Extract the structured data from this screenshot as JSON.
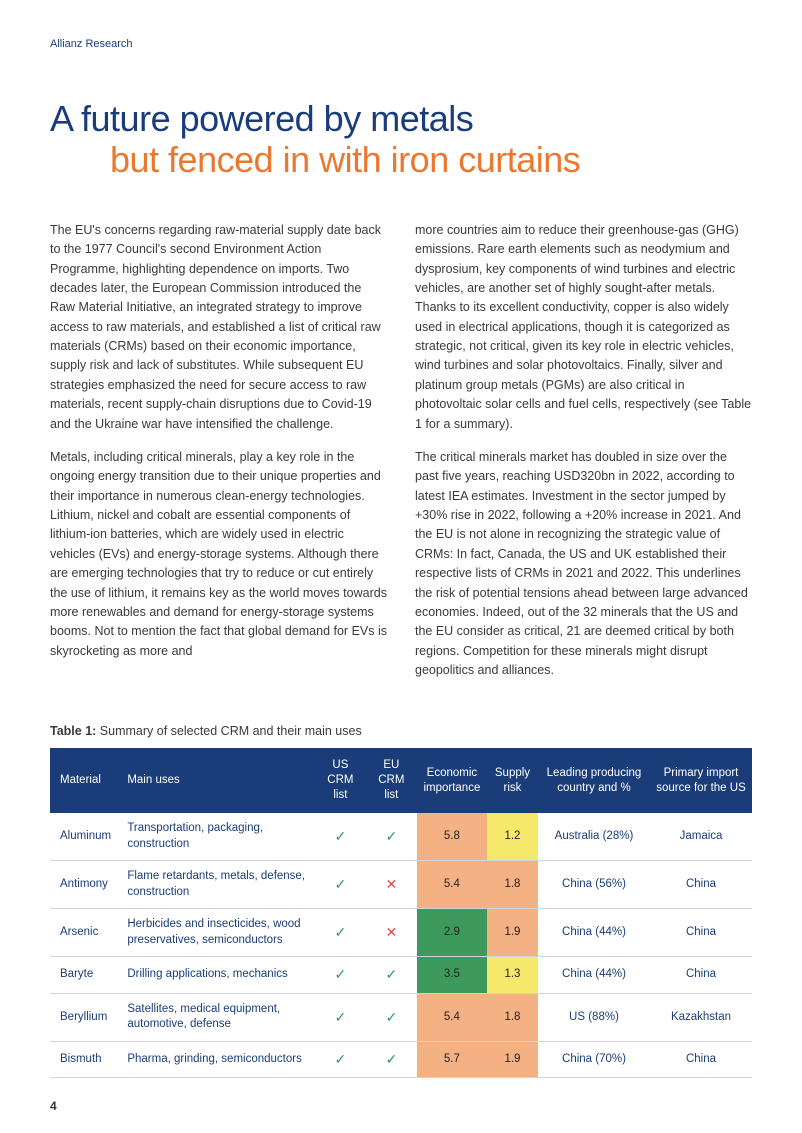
{
  "header": {
    "label": "Allianz Research"
  },
  "title": {
    "line1": "A future powered by metals",
    "line2": "but fenced in with iron curtains"
  },
  "body": {
    "left": [
      "The EU's concerns regarding raw-material supply date back to the 1977 Council's second Environment Action Programme, highlighting dependence on imports. Two decades later, the European Commission introduced the Raw Material Initiative, an integrated strategy to improve access to raw materials, and established a list of critical raw materials (CRMs) based on their economic importance, supply risk and lack of substitutes. While subsequent EU strategies emphasized the need for secure access to raw materials, recent supply-chain disruptions due to Covid-19 and the Ukraine war have intensified the challenge.",
      "Metals, including critical minerals, play a key role in the ongoing energy transition due to their unique properties and their importance in numerous clean-energy technologies. Lithium, nickel and cobalt are essential components of lithium-ion batteries, which are widely used in electric vehicles (EVs) and energy-storage systems. Although there are emerging technologies that try to reduce or cut entirely the use of lithium, it remains key as the world moves towards more renewables and demand for energy-storage systems booms. Not to mention the fact that global demand for EVs is skyrocketing as more and"
    ],
    "right": [
      "more countries aim to reduce their greenhouse-gas (GHG) emissions. Rare earth elements such as neodymium and dysprosium, key components of wind turbines and electric vehicles, are another set of highly sought-after metals. Thanks to its excellent conductivity, copper is also widely used in electrical applications, though it is categorized as strategic, not critical, given its key role in electric vehicles, wind turbines and solar photovoltaics. Finally, silver and platinum group metals (PGMs) are also critical in photovoltaic solar cells and fuel cells, respectively (see Table 1 for a summary).",
      "The critical minerals market has doubled in size over the past five years, reaching USD320bn in 2022, according to latest IEA estimates. Investment in the sector jumped by +30% rise in 2022, following a +20% increase in 2021. And the EU is not alone in recognizing the strategic value of CRMs: In fact, Canada, the US and UK established their respective lists of CRMs in 2021 and 2022. This underlines the risk of potential tensions ahead between large advanced economies. Indeed, out of the 32 minerals that the US and the EU consider as critical, 21 are deemed critical by both regions. Competition for these minerals might disrupt geopolitics and alliances."
    ]
  },
  "table": {
    "caption_bold": "Table 1:",
    "caption_rest": " Summary of selected CRM and their main uses",
    "headers": [
      "Material",
      "Main uses",
      "US CRM list",
      "EU CRM list",
      "Economic importance",
      "Supply risk",
      "Leading producing country and %",
      "Primary import source for the US"
    ],
    "col_widths": [
      "70px",
      "190px",
      "50px",
      "50px",
      "68px",
      "50px",
      "110px",
      "100px"
    ],
    "rows": [
      {
        "material": "Aluminum",
        "uses": "Transportation, packaging, construction",
        "us": true,
        "eu": true,
        "econ": "5.8",
        "econ_bg": "#f4b183",
        "risk": "1.2",
        "risk_bg": "#f4e96a",
        "lead": "Australia (28%)",
        "primary": "Jamaica"
      },
      {
        "material": "Antimony",
        "uses": "Flame retardants, metals, defense, construction",
        "us": true,
        "eu": false,
        "econ": "5.4",
        "econ_bg": "#f4b183",
        "risk": "1.8",
        "risk_bg": "#f4b183",
        "lead": "China (56%)",
        "primary": "China"
      },
      {
        "material": "Arsenic",
        "uses": "Herbicides and insecticides, wood preservatives, semiconductors",
        "us": true,
        "eu": false,
        "econ": "2.9",
        "econ_bg": "#3d9a5c",
        "risk": "1.9",
        "risk_bg": "#f4b183",
        "lead": "China (44%)",
        "primary": "China"
      },
      {
        "material": "Baryte",
        "uses": "Drilling applications, mechanics",
        "us": true,
        "eu": true,
        "econ": "3.5",
        "econ_bg": "#3d9a5c",
        "risk": "1.3",
        "risk_bg": "#f4e96a",
        "lead": "China (44%)",
        "primary": "China"
      },
      {
        "material": "Beryllium",
        "uses": "Satellites, medical equipment, automotive, defense",
        "us": true,
        "eu": true,
        "econ": "5.4",
        "econ_bg": "#f4b183",
        "risk": "1.8",
        "risk_bg": "#f4b183",
        "lead": "US (88%)",
        "primary": "Kazakhstan"
      },
      {
        "material": "Bismuth",
        "uses": "Pharma, grinding, semiconductors",
        "us": true,
        "eu": true,
        "econ": "5.7",
        "econ_bg": "#f4b183",
        "risk": "1.9",
        "risk_bg": "#f4b183",
        "lead": "China (70%)",
        "primary": "China"
      }
    ],
    "check_glyph": "✓",
    "cross_glyph": "✕"
  },
  "page_number": "4"
}
